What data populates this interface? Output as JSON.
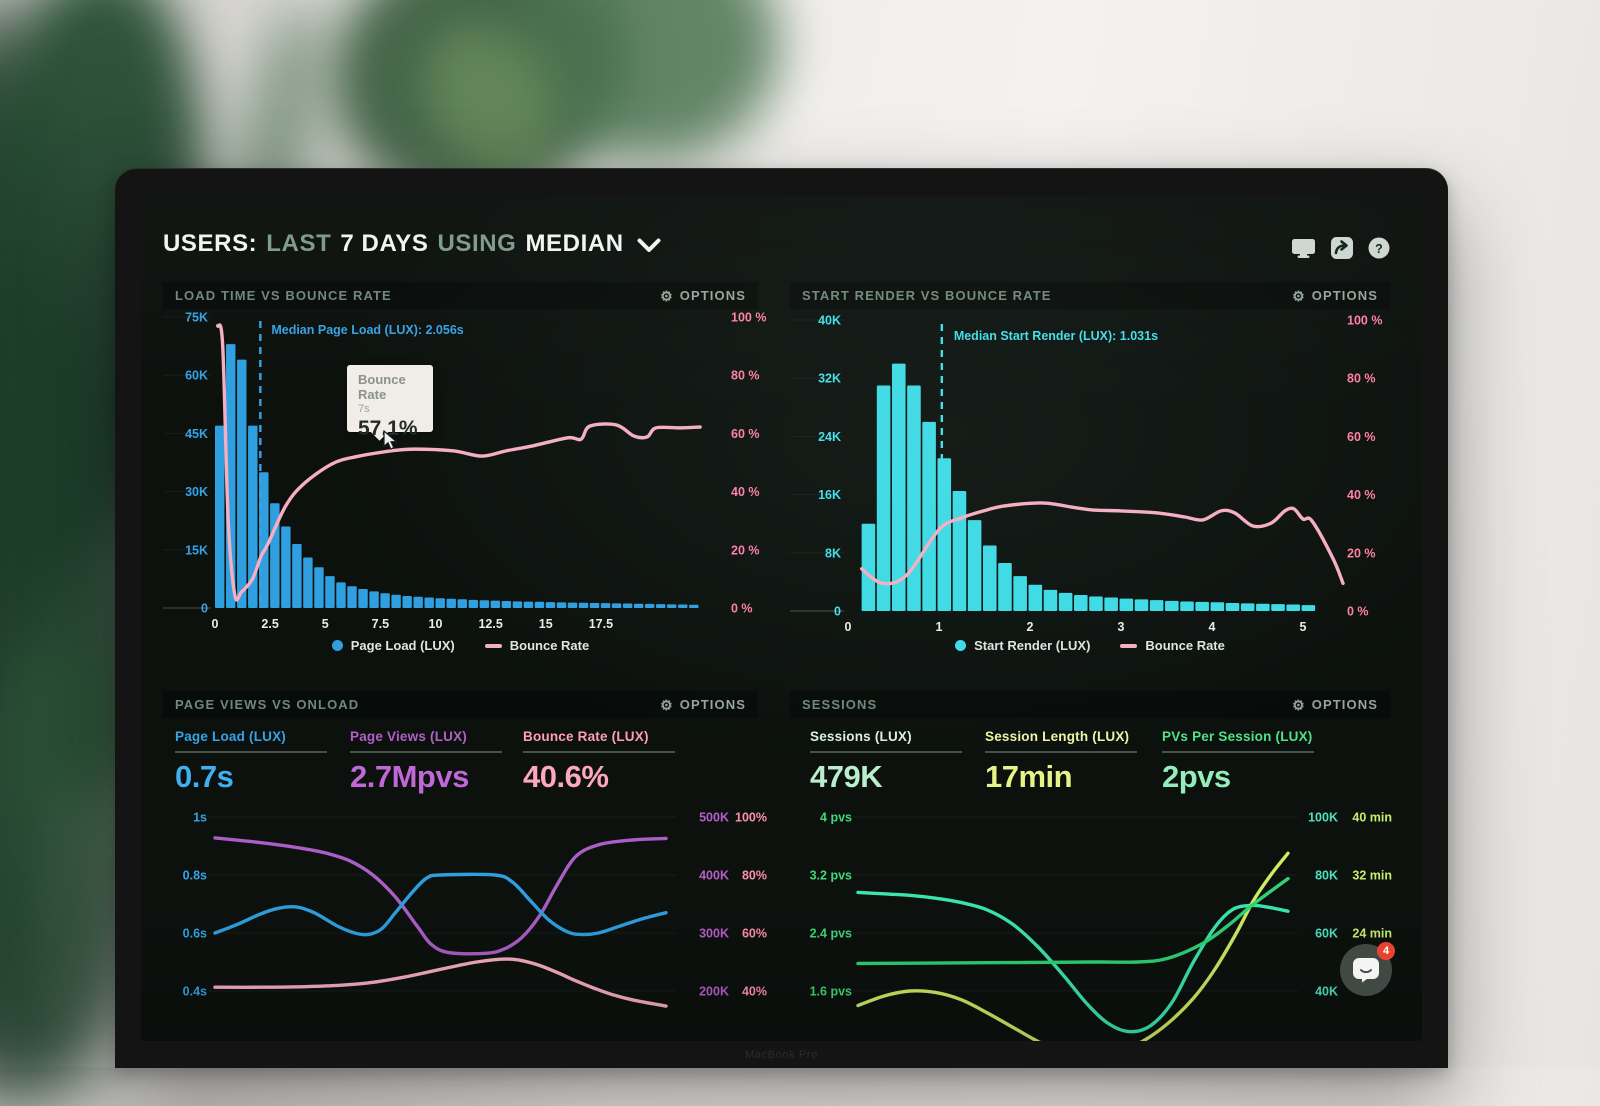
{
  "header": {
    "title_parts": [
      {
        "text": "USERS:",
        "muted": false
      },
      {
        "text": "LAST",
        "muted": true
      },
      {
        "text": "7 DAYS",
        "muted": false
      },
      {
        "text": "USING",
        "muted": true
      },
      {
        "text": "MEDIAN",
        "muted": false
      }
    ],
    "help_glyph": "?"
  },
  "laptop": {
    "brand": "MacBook Pro"
  },
  "chat": {
    "badge": "4"
  },
  "tooltip": {
    "series": "Bounce Rate",
    "x": "7s",
    "value": "57.1%"
  },
  "colors": {
    "blue": "#35a3e6",
    "cyan": "#40dee9",
    "pink_line": "#f6aec3",
    "pink_label": "#ff7fa6",
    "purple": "#b45fc9",
    "green": "#3fd978",
    "mint": "#3ce6ae",
    "yellow_green": "#cfec62",
    "screen_bg": "#0c110e"
  },
  "chart_data": [
    {
      "type": "bar+line",
      "title": "LOAD TIME VS BOUNCE RATE",
      "options_label": "OPTIONS",
      "left_axis": {
        "labels": [
          "75K",
          "60K",
          "45K",
          "30K",
          "15K",
          "0"
        ],
        "max_k": 75,
        "color": "#35a3e6"
      },
      "right_axis": {
        "labels": [
          "100 %",
          "80 %",
          "60 %",
          "40 %",
          "20 %",
          "0 %"
        ],
        "max": 100,
        "color": "#ff7fa6"
      },
      "x_ticks": [
        {
          "label": "0",
          "v": 0
        },
        {
          "label": "2.5",
          "v": 2.5
        },
        {
          "label": "5",
          "v": 5
        },
        {
          "label": "7.5",
          "v": 7.5
        },
        {
          "label": "10",
          "v": 10
        },
        {
          "label": "12.5",
          "v": 12.5
        },
        {
          "label": "15",
          "v": 15
        },
        {
          "label": "17.5",
          "v": 17.5
        }
      ],
      "xmax": 22,
      "bars": {
        "name": "Page Load (LUX)",
        "color": "#2f9fe0",
        "bin_start": 0,
        "bin_width": 0.5,
        "values_k": [
          47,
          68,
          64,
          47,
          35,
          27,
          21,
          16.5,
          13,
          10.5,
          8.2,
          6.6,
          5.6,
          4.9,
          4.3,
          3.8,
          3.4,
          3.1,
          2.9,
          2.7,
          2.5,
          2.4,
          2.25,
          2.1,
          2.0,
          1.9,
          1.8,
          1.7,
          1.65,
          1.6,
          1.5,
          1.45,
          1.4,
          1.35,
          1.3,
          1.25,
          1.2,
          1.15,
          1.1,
          1.05,
          1.0,
          0.95,
          0.9,
          0.85
        ]
      },
      "median": {
        "x": 2.056,
        "label": "Median Page Load (LUX): 2.056s"
      },
      "line": {
        "name": "Bounce Rate",
        "color": "#f6aec3",
        "points": [
          [
            0.12,
            97
          ],
          [
            0.35,
            90
          ],
          [
            0.6,
            30
          ],
          [
            0.9,
            4.5
          ],
          [
            1.2,
            5.5
          ],
          [
            1.7,
            10
          ],
          [
            2.1,
            18
          ],
          [
            2.4,
            22
          ],
          [
            3.2,
            35
          ],
          [
            4,
            42.5
          ],
          [
            5.3,
            49.5
          ],
          [
            6.4,
            52
          ],
          [
            8,
            54
          ],
          [
            9,
            54.6
          ],
          [
            10.8,
            54
          ],
          [
            12.1,
            52.2
          ],
          [
            13.2,
            54
          ],
          [
            14.4,
            55.7
          ],
          [
            16,
            58.5
          ],
          [
            16.6,
            58
          ],
          [
            17,
            62.5
          ],
          [
            18.2,
            62.9
          ],
          [
            19,
            59.1
          ],
          [
            19.6,
            58.8
          ],
          [
            20,
            61.9
          ],
          [
            21.1,
            61.9
          ],
          [
            22,
            62.2
          ]
        ]
      },
      "legend": [
        {
          "type": "dot",
          "color": "#2f9fe0",
          "label": "Page Load (LUX)"
        },
        {
          "type": "line",
          "color": "#f6aec3",
          "label": "Bounce Rate"
        }
      ]
    },
    {
      "type": "bar+line",
      "title": "START RENDER VS BOUNCE RATE",
      "options_label": "OPTIONS",
      "left_axis": {
        "labels": [
          "40K",
          "32K",
          "24K",
          "16K",
          "8K",
          "0"
        ],
        "max_k": 40,
        "color": "#40dee9"
      },
      "right_axis": {
        "labels": [
          "100 %",
          "80 %",
          "60 %",
          "40 %",
          "20 %",
          "0 %"
        ],
        "max": 100,
        "color": "#ff7fa6"
      },
      "x_ticks": [
        {
          "label": "0",
          "v": 0
        },
        {
          "label": "1",
          "v": 1
        },
        {
          "label": "2",
          "v": 2
        },
        {
          "label": "3",
          "v": 3
        },
        {
          "label": "4",
          "v": 4
        },
        {
          "label": "5",
          "v": 5
        }
      ],
      "xmax": 5.45,
      "bars": {
        "name": "Start Render (LUX)",
        "color": "#3ddbe6",
        "bin_start": 0.15,
        "bin_width": 0.1667,
        "values_k": [
          12,
          31,
          34,
          31,
          26,
          21,
          16.5,
          12.5,
          9,
          6.6,
          4.8,
          3.6,
          2.9,
          2.5,
          2.2,
          2.0,
          1.85,
          1.7,
          1.6,
          1.5,
          1.4,
          1.3,
          1.25,
          1.2,
          1.1,
          1.05,
          1.0,
          0.95,
          0.9,
          0.8
        ]
      },
      "median": {
        "x": 1.031,
        "label": "Median Start Render (LUX): 1.031s"
      },
      "line": {
        "name": "Bounce Rate",
        "color": "#f6aec3",
        "points": [
          [
            0.15,
            14.5
          ],
          [
            0.38,
            9.5
          ],
          [
            0.65,
            12.5
          ],
          [
            1.0,
            28
          ],
          [
            1.25,
            32
          ],
          [
            1.5,
            34.5
          ],
          [
            1.7,
            36
          ],
          [
            2.0,
            37
          ],
          [
            2.2,
            37
          ],
          [
            2.5,
            35.5
          ],
          [
            2.7,
            34.7
          ],
          [
            3.0,
            34.4
          ],
          [
            3.4,
            33.7
          ],
          [
            3.7,
            32.3
          ],
          [
            3.9,
            31.3
          ],
          [
            4.1,
            34.4
          ],
          [
            4.25,
            33.7
          ],
          [
            4.45,
            29.2
          ],
          [
            4.65,
            30.2
          ],
          [
            4.8,
            34.4
          ],
          [
            4.9,
            35.1
          ],
          [
            5.0,
            31.6
          ],
          [
            5.1,
            30.9
          ],
          [
            5.33,
            18
          ],
          [
            5.44,
            9.5
          ]
        ]
      },
      "legend": [
        {
          "type": "dot",
          "color": "#3ddbe6",
          "label": "Start Render (LUX)"
        },
        {
          "type": "line",
          "color": "#f6aec3",
          "label": "Bounce Rate"
        }
      ]
    },
    {
      "type": "line-multi",
      "title": "PAGE VIEWS VS ONLOAD",
      "options_label": "OPTIONS",
      "metrics": [
        {
          "label": "Page Load (LUX)",
          "value": "0.7s",
          "label_color": "#35a3e6",
          "value_color": "#3fb0f0"
        },
        {
          "label": "Page Views (LUX)",
          "value": "2.7Mpvs",
          "label_color": "#b45fc9",
          "value_color": "#c167d8"
        },
        {
          "label": "Bounce Rate (LUX)",
          "value": "40.6%",
          "label_color": "#ff9eba",
          "value_color": "#ffa6c1"
        }
      ],
      "left_axis": {
        "labels": [
          "1s",
          "0.8s",
          "0.6s",
          "0.4s"
        ],
        "color": "#35a3e6"
      },
      "right_axis_1": {
        "labels": [
          "500K",
          "400K",
          "300K",
          "200K"
        ],
        "color": "#b45fc9"
      },
      "right_axis_2": {
        "labels": [
          "100%",
          "80%",
          "60%",
          "40%"
        ],
        "color": "#ff8fae"
      },
      "series": [
        {
          "name": "Page Views",
          "color": "#ab5ec6",
          "top_value": 500,
          "per_row": 100,
          "points": [
            [
              0,
              464
            ],
            [
              5,
              460
            ],
            [
              10,
              456
            ],
            [
              15,
              451
            ],
            [
              20,
              445
            ],
            [
              25,
              437
            ],
            [
              30,
              424
            ],
            [
              35,
              400
            ],
            [
              40,
              362
            ],
            [
              45,
              310
            ],
            [
              48,
              280
            ],
            [
              52,
              266
            ],
            [
              60,
              265
            ],
            [
              64,
              272
            ],
            [
              68,
              292
            ],
            [
              72,
              330
            ],
            [
              76,
              385
            ],
            [
              80,
              432
            ],
            [
              85,
              452
            ],
            [
              92,
              460
            ],
            [
              100,
              463
            ]
          ]
        },
        {
          "name": "Page Load",
          "color": "#2f9fe0",
          "top_value": 1,
          "per_row": 0.2,
          "points": [
            [
              0,
              0.6
            ],
            [
              5,
              0.63
            ],
            [
              10,
              0.665
            ],
            [
              14,
              0.685
            ],
            [
              18,
              0.69
            ],
            [
              22,
              0.67
            ],
            [
              27,
              0.625
            ],
            [
              31,
              0.6
            ],
            [
              34,
              0.595
            ],
            [
              37,
              0.615
            ],
            [
              40,
              0.67
            ],
            [
              44,
              0.745
            ],
            [
              47,
              0.79
            ],
            [
              50,
              0.8
            ],
            [
              62,
              0.8
            ],
            [
              66,
              0.775
            ],
            [
              70,
              0.71
            ],
            [
              74,
              0.645
            ],
            [
              78,
              0.605
            ],
            [
              81,
              0.595
            ],
            [
              85,
              0.6
            ],
            [
              90,
              0.625
            ],
            [
              95,
              0.65
            ],
            [
              100,
              0.67
            ]
          ]
        },
        {
          "name": "Bounce Rate",
          "color": "#f7aec2",
          "top_value": 100,
          "per_row": 20,
          "points": [
            [
              0,
              41.3
            ],
            [
              10,
              41.3
            ],
            [
              20,
              41.5
            ],
            [
              28,
              42
            ],
            [
              35,
              43
            ],
            [
              42,
              44.8
            ],
            [
              48,
              46.8
            ],
            [
              54,
              48.8
            ],
            [
              58,
              50
            ],
            [
              62,
              50.8
            ],
            [
              65,
              51
            ],
            [
              68,
              50.5
            ],
            [
              72,
              48.8
            ],
            [
              76,
              46.3
            ],
            [
              80,
              43.5
            ],
            [
              84,
              41
            ],
            [
              88,
              38.8
            ],
            [
              93,
              36.8
            ],
            [
              100,
              34.8
            ]
          ]
        }
      ]
    },
    {
      "type": "line-multi",
      "title": "SESSIONS",
      "options_label": "OPTIONS",
      "metrics": [
        {
          "label": "Sessions (LUX)",
          "value": "479K",
          "label_color": "#d9f0e2",
          "value_color": "#b9eecd"
        },
        {
          "label": "Session Length (LUX)",
          "value": "17min",
          "label_color": "#ebf5a6",
          "value_color": "#e7f386"
        },
        {
          "label": "PVs Per Session (LUX)",
          "value": "2pvs",
          "label_color": "#4fe289",
          "value_color": "#93edb8"
        }
      ],
      "left_axis": {
        "labels": [
          "4 pvs",
          "3.2 pvs",
          "2.4 pvs",
          "1.6 pvs"
        ],
        "color": "#3fd978"
      },
      "right_axis_1": {
        "labels": [
          "100K",
          "80K",
          "60K",
          "40K"
        ],
        "color": "#4fe0c0"
      },
      "right_axis_2": {
        "labels": [
          "40 min",
          "32 min",
          "24 min",
          ""
        ],
        "color": "#c9ee6e"
      },
      "series": [
        {
          "name": "Sessions",
          "color": "#3ce6ae",
          "top_value": 100,
          "per_row": 20,
          "points": [
            [
              0,
              74
            ],
            [
              6,
              73.5
            ],
            [
              12,
              73
            ],
            [
              18,
              72
            ],
            [
              24,
              70.5
            ],
            [
              30,
              68
            ],
            [
              36,
              63
            ],
            [
              42,
              55
            ],
            [
              48,
              45
            ],
            [
              53,
              36
            ],
            [
              58,
              29
            ],
            [
              63,
              26
            ],
            [
              68,
              28
            ],
            [
              73,
              36
            ],
            [
              78,
              50
            ],
            [
              83,
              62
            ],
            [
              87,
              68
            ],
            [
              91,
              69.5
            ],
            [
              95,
              69
            ],
            [
              100,
              67.5
            ]
          ]
        },
        {
          "name": "Session Length",
          "color": "#cfec62",
          "top_value": 40,
          "per_row": 8,
          "points": [
            [
              0,
              14
            ],
            [
              6,
              15.3
            ],
            [
              12,
              16
            ],
            [
              18,
              15.8
            ],
            [
              24,
              14.8
            ],
            [
              30,
              13
            ],
            [
              36,
              11
            ],
            [
              42,
              9
            ],
            [
              48,
              7.5
            ],
            [
              54,
              7
            ],
            [
              60,
              7.5
            ],
            [
              66,
              9
            ],
            [
              72,
              11.5
            ],
            [
              78,
              15
            ],
            [
              83,
              19
            ],
            [
              88,
              24
            ],
            [
              92,
              28.5
            ],
            [
              96,
              32
            ],
            [
              100,
              35
            ]
          ]
        },
        {
          "name": "PVs Per Session",
          "color": "#2fd374",
          "top_value": 4,
          "per_row": 0.8,
          "points": [
            [
              0,
              1.98
            ],
            [
              30,
              1.99
            ],
            [
              55,
              2.0
            ],
            [
              65,
              2.0
            ],
            [
              72,
              2.05
            ],
            [
              80,
              2.25
            ],
            [
              86,
              2.5
            ],
            [
              92,
              2.8
            ],
            [
              100,
              3.15
            ]
          ]
        }
      ]
    }
  ]
}
